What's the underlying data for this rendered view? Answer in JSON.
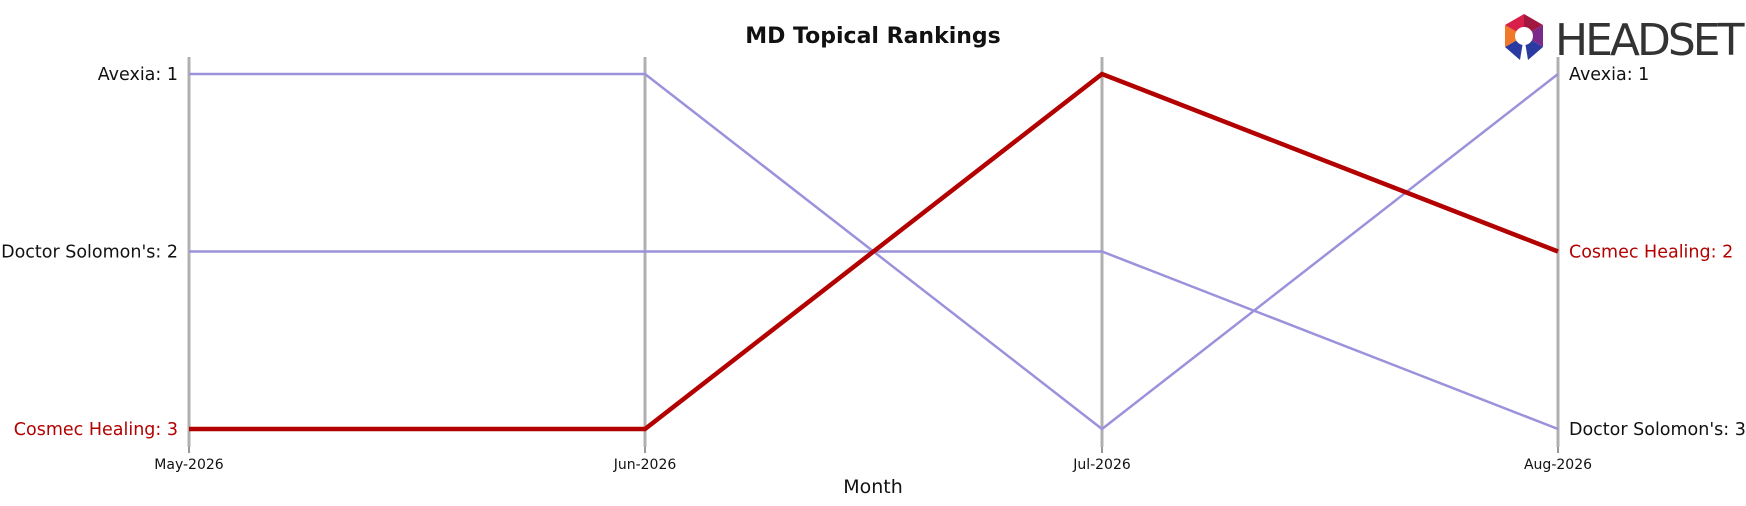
{
  "chart_data": {
    "type": "line",
    "title": "MD Topical Rankings",
    "xlabel": "Month",
    "ylabel": "",
    "x": [
      "May-2026",
      "Jun-2026",
      "Jul-2026",
      "Aug-2026"
    ],
    "y_inverted": true,
    "ylim": [
      1,
      3
    ],
    "grid": "vertical lines at each month",
    "legend": "none; brand names labeled at both line ends",
    "series": [
      {
        "name": "Avexia",
        "values": [
          1,
          1,
          3,
          1
        ],
        "color": "#9b92dc",
        "highlight": false
      },
      {
        "name": "Doctor Solomon's",
        "values": [
          2,
          2,
          2,
          3
        ],
        "color": "#9b92dc",
        "highlight": false
      },
      {
        "name": "Cosmec Healing",
        "values": [
          3,
          3,
          1,
          2
        ],
        "color": "#b30000",
        "highlight": true
      }
    ],
    "left_labels": [
      {
        "text": "Avexia: 1",
        "series": "Avexia"
      },
      {
        "text": "Doctor Solomon's: 2",
        "series": "Doctor Solomon's"
      },
      {
        "text": "Cosmec Healing: 3",
        "series": "Cosmec Healing"
      }
    ],
    "right_labels": [
      {
        "text": "Avexia: 1",
        "series": "Avexia"
      },
      {
        "text": "Cosmec Healing: 2",
        "series": "Cosmec Healing"
      },
      {
        "text": "Doctor Solomon's: 3",
        "series": "Doctor Solomon's"
      }
    ]
  },
  "logo": {
    "text": "HEADSET",
    "icon": "headset-logo-icon"
  },
  "colors": {
    "highlight": "#b30000",
    "other": "#9b92dc",
    "gridline": "#b0b0b0",
    "text": "#111111"
  }
}
